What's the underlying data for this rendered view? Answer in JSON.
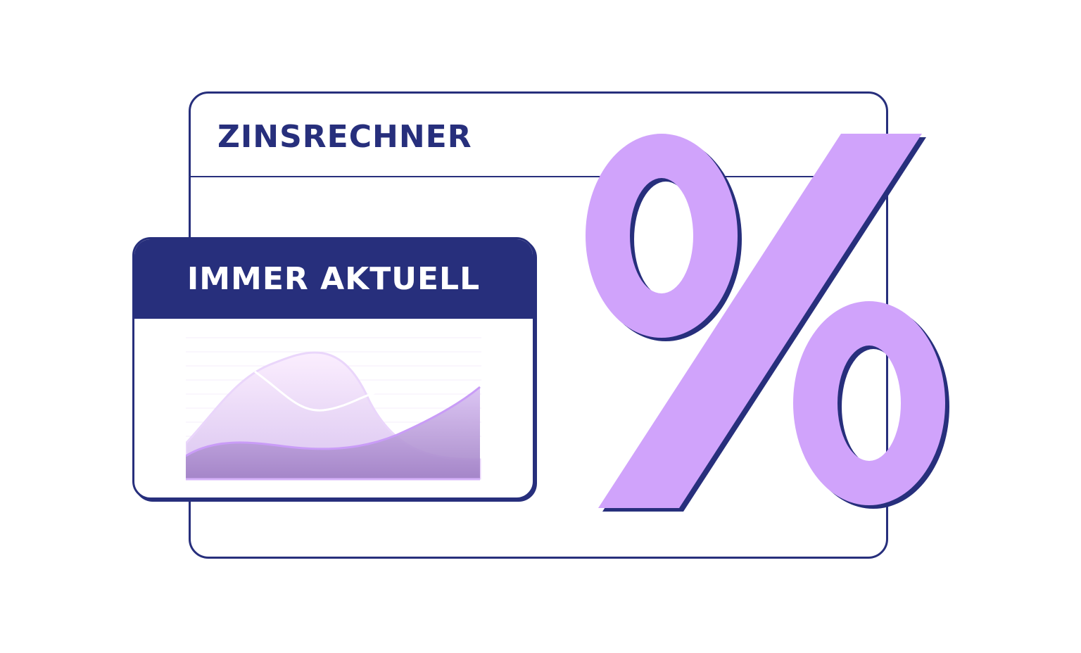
{
  "calculator_card": {
    "title": "ZINSRECHNER"
  },
  "badge_card": {
    "title": "IMMER AKTUELL"
  },
  "percent_symbol": {
    "icon": "percent-icon",
    "color": "#d0a3fb",
    "shadow_color": "#272f7c"
  },
  "colors": {
    "navy": "#272f7c",
    "lavender": "#d0a3fb"
  }
}
